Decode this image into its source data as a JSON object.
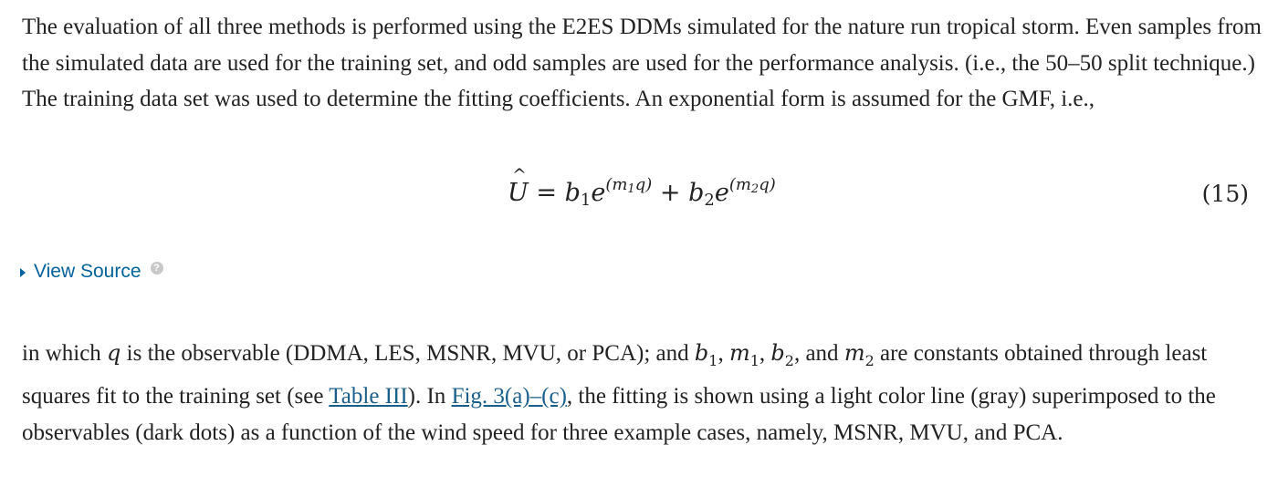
{
  "paragraph1": "The evaluation of all three methods is performed using the E2ES DDMs simulated for the nature run tropical storm. Even samples from the simulated data are used for the training set, and odd samples are used for the performance analysis. (i.e., the 50–50 split technique.) The training data set was used to determine the fitting coefficients. An exponential form is assumed for the GMF, i.e.,",
  "equation": {
    "lhs": "U",
    "equals": "=",
    "b": "b",
    "e": "e",
    "m": "m",
    "q": "q",
    "plus": "+",
    "idx1": "1",
    "idx2": "2",
    "paren_open": "(",
    "paren_close": ")",
    "number": "(15)"
  },
  "view_source": {
    "label": "View Source",
    "help_glyph": "?"
  },
  "paragraph2": {
    "t1": "in which ",
    "q": "q",
    "t2": " is the observable (DDMA, LES, MSNR, MVU, or PCA); and ",
    "b1": "b",
    "s1": "1",
    "c1": ", ",
    "m1": "m",
    "s2": "1",
    "c2": ", ",
    "b2": "b",
    "s3": "2",
    "c3": ", and ",
    "m2": "m",
    "s4": "2",
    "t3": " are constants obtained through least squares fit to the training set (see ",
    "link_table": "Table III",
    "t4": "). In  ",
    "link_fig": "Fig. 3(a)–(c)",
    "t5": ", the fitting is shown using a light color line (gray) superimposed to the observables (dark dots) as a function of the wind speed for three example cases, namely, MSNR, MVU, and PCA."
  }
}
